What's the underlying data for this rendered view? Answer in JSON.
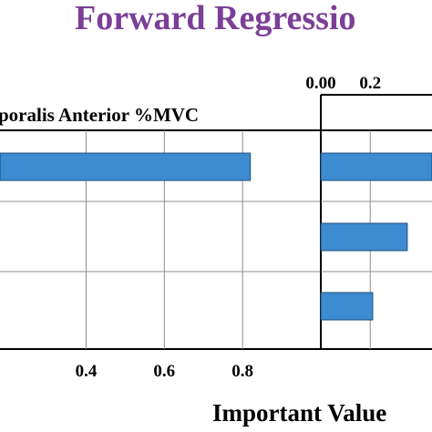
{
  "title": "Forward Regressio",
  "colors": {
    "title": "#7b3f98",
    "bar_fill": "#3d8bd0",
    "bar_stroke": "#1f4e79",
    "grid": "#8c8c8c",
    "axis": "#000000"
  },
  "chart_data": [
    {
      "type": "bar",
      "orientation": "horizontal",
      "panel_title": "poralis Anterior %MVC",
      "xlabel": "",
      "ylabel": "",
      "xlim": [
        0.18,
        1.0
      ],
      "ticks": [
        0.4,
        0.6,
        0.8
      ],
      "tick_labels": [
        "0.4",
        "0.6",
        "0.8"
      ],
      "values": [
        0.82
      ],
      "grid": true
    },
    {
      "type": "bar",
      "orientation": "horizontal",
      "panel_title": "",
      "xlim": [
        0.0,
        0.45
      ],
      "ticks": [
        0.0,
        0.2
      ],
      "tick_labels": [
        "0.00",
        "0.2"
      ],
      "values": [
        0.45,
        0.35,
        0.21
      ],
      "grid": true
    }
  ],
  "xlabel": "Important Value"
}
